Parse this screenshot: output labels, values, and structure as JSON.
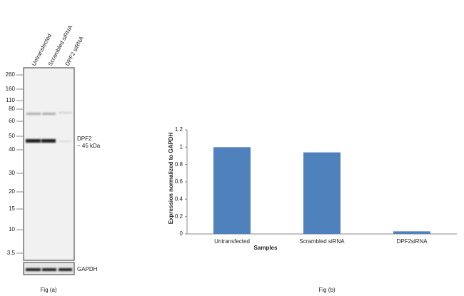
{
  "blot": {
    "lanes": [
      "Untransfected",
      "Scrambled siRNA",
      "DPF2 siRNA"
    ],
    "markers": [
      260,
      160,
      110,
      80,
      60,
      50,
      40,
      30,
      20,
      15,
      10,
      3.5
    ],
    "target": "DPF2",
    "size": "~ 45 kDa",
    "control": "GAPDH",
    "caption": "Fig (a)"
  },
  "chart_data": {
    "type": "bar",
    "caption": "Fig (b)",
    "x_label": "Samples",
    "y_label": "Expression normalized to GAPDH",
    "categories": [
      "Untransfected",
      "Scrambled siRNA",
      "DPF2siRNA"
    ],
    "values": [
      1,
      0.94,
      0.03
    ],
    "color": "#4f81bd",
    "ylim": [
      0,
      1.2
    ],
    "yticks": [
      0,
      0.2,
      0.4,
      0.6,
      0.8,
      1,
      1.2
    ]
  }
}
